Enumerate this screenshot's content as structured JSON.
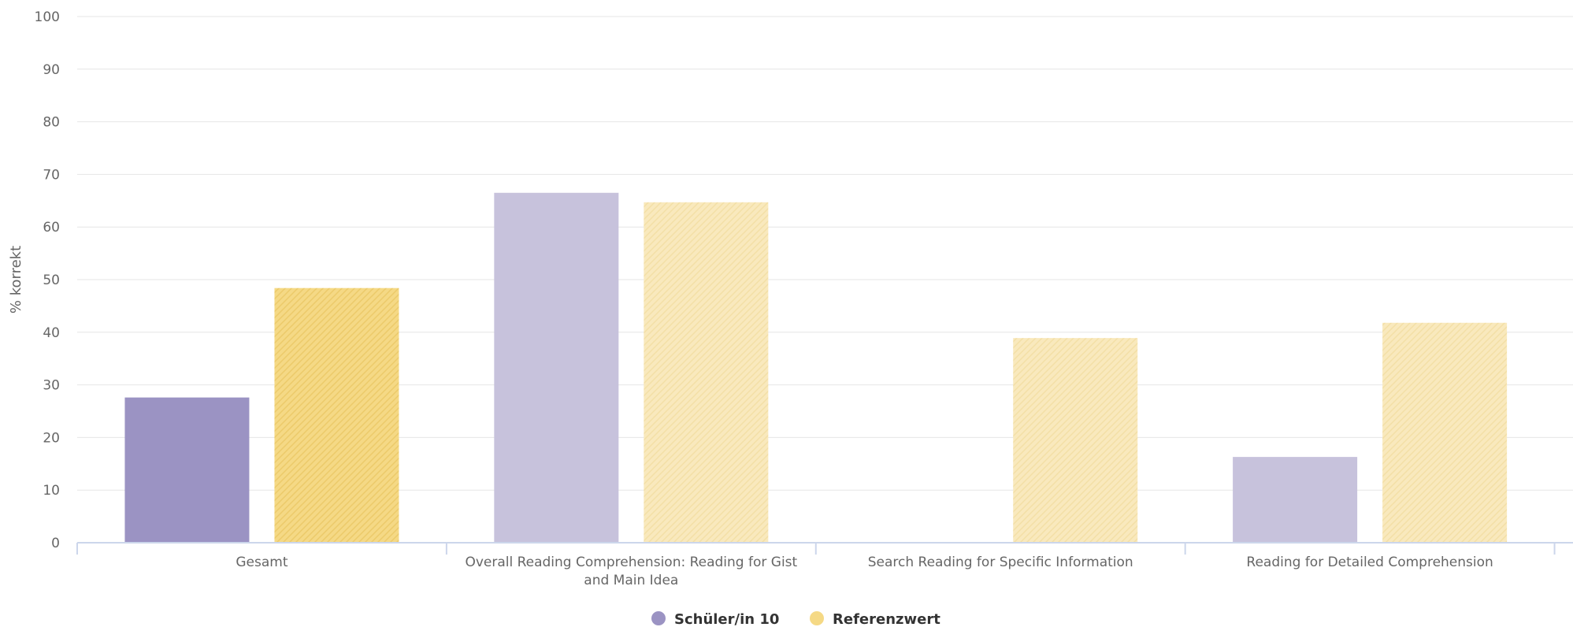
{
  "chart_data": {
    "type": "bar",
    "ylabel": "% korrekt",
    "xlabel": "",
    "ylim": [
      0,
      100
    ],
    "yticks": [
      0,
      10,
      20,
      30,
      40,
      50,
      60,
      70,
      80,
      90,
      100
    ],
    "grid": true,
    "legend_position": "bottom-center",
    "categories": [
      [
        "Gesamt"
      ],
      [
        "Overall Reading Comprehension: Reading for Gist",
        "and Main Idea"
      ],
      [
        "Search Reading for Specific Information"
      ],
      [
        "Reading for Detailed Comprehension"
      ]
    ],
    "series": [
      {
        "name": "Schüler/in 10",
        "color": "#9b93c3",
        "light_color": "#c7c2dc",
        "values": [
          27.6,
          66.5,
          0,
          16.3
        ]
      },
      {
        "name": "Referenzwert",
        "color": "#f5d985",
        "light_color": "#f9e9bd",
        "values": [
          48.4,
          64.7,
          38.9,
          41.8
        ]
      }
    ]
  }
}
